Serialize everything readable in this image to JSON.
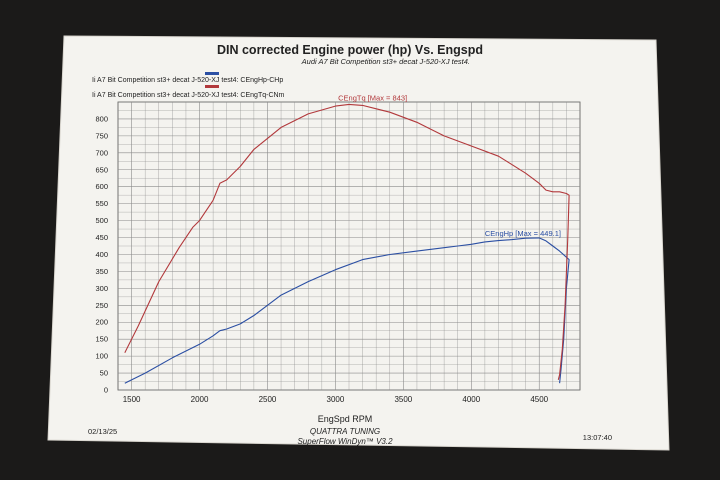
{
  "chart_data": {
    "type": "line",
    "title": "DIN corrected Engine power (hp) Vs. Engspd",
    "subtitle": "Audi A7 Bit Competition st3+ decat J-520-XJ test4.",
    "xlabel": "EngSpd RPM",
    "ylabel": "",
    "xlim": [
      1400,
      4800
    ],
    "ylim": [
      0,
      850
    ],
    "xticks": [
      "1500",
      "2000",
      "2500",
      "3000",
      "3500",
      "4000",
      "4500"
    ],
    "yticks": [
      "0",
      "50",
      "100",
      "150",
      "200",
      "250",
      "300",
      "350",
      "400",
      "450",
      "500",
      "550",
      "600",
      "650",
      "700",
      "750",
      "800"
    ],
    "grid": true,
    "legend_position": "top-left",
    "series": [
      {
        "name": "Ii A7 Bit Competition st3+ decat J-520-XJ test4: CEngHp-CHp",
        "label": "CEngHp [Max = 449.1]",
        "color": "#2b4fa3",
        "x": [
          1450,
          1600,
          1800,
          2000,
          2100,
          2150,
          2200,
          2300,
          2400,
          2600,
          2800,
          3000,
          3200,
          3400,
          3600,
          3800,
          3900,
          4000,
          4100,
          4200,
          4300,
          4400,
          4500,
          4550,
          4600,
          4650,
          4700,
          4720,
          4700,
          4680,
          4660,
          4650
        ],
        "y": [
          20,
          50,
          95,
          135,
          160,
          175,
          180,
          195,
          220,
          280,
          320,
          355,
          385,
          400,
          410,
          420,
          425,
          430,
          437,
          441,
          444,
          448,
          449,
          440,
          425,
          410,
          392,
          385,
          300,
          150,
          60,
          20
        ]
      },
      {
        "name": "Ii A7 Bit Competition st3+ decat J-520-XJ test4: CEngTq-CNm",
        "label": "CEngTq [Max = 843]",
        "color": "#b2393c",
        "x": [
          1450,
          1550,
          1700,
          1850,
          1950,
          2000,
          2100,
          2150,
          2200,
          2300,
          2400,
          2600,
          2800,
          3000,
          3100,
          3200,
          3400,
          3600,
          3800,
          4000,
          4200,
          4300,
          4400,
          4500,
          4550,
          4600,
          4650,
          4700,
          4720,
          4710,
          4690,
          4670,
          4650,
          4640
        ],
        "y": [
          110,
          190,
          320,
          420,
          480,
          500,
          560,
          610,
          620,
          660,
          710,
          775,
          815,
          838,
          843,
          840,
          820,
          790,
          750,
          720,
          690,
          665,
          640,
          610,
          590,
          585,
          585,
          580,
          575,
          450,
          250,
          120,
          45,
          30
        ]
      }
    ]
  },
  "footer": {
    "date": "02/13/25",
    "shop": "QUATTRA TUNING",
    "software": "SuperFlow WinDyn™ V3.2",
    "time": "13:07:40"
  }
}
